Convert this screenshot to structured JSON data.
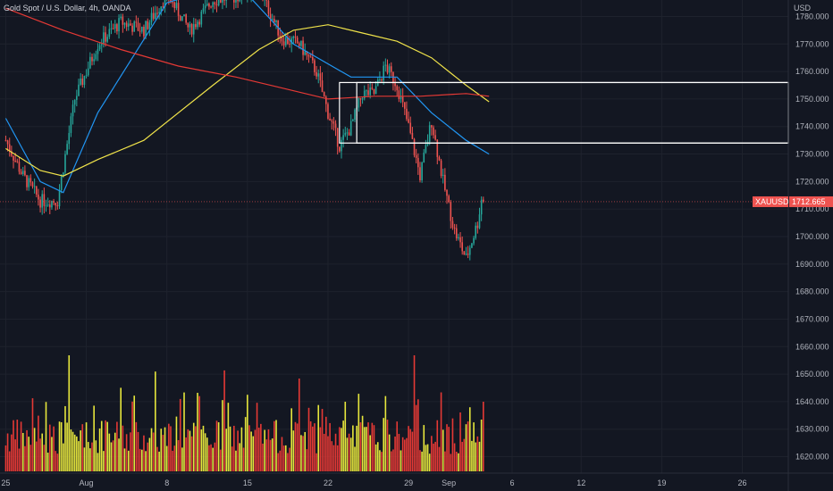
{
  "title": "Gold Spot / U.S. Dollar, 4h, OANDA",
  "currency": "USD",
  "price_tag": {
    "symbol": "XAUUSD",
    "value": "1712.665"
  },
  "colors": {
    "background": "#131722",
    "up": "#26a69a",
    "down": "#ef5350",
    "ma_fast": "#2196f3",
    "ma_mid": "#f0e34a",
    "ma_slow": "#e53935",
    "vol_up": "#e6e63c",
    "vol_down": "#e53935",
    "box": "#ffffff"
  },
  "chart_data": {
    "type": "candlestick",
    "y_axis": {
      "ticks": [
        "1780.000",
        "1770.000",
        "1760.000",
        "1750.000",
        "1740.000",
        "1730.000",
        "1720.000",
        "1710.000",
        "1700.000",
        "1690.000",
        "1680.000",
        "1670.000",
        "1660.000",
        "1650.000",
        "1640.000",
        "1630.000",
        "1620.000"
      ],
      "range": [
        1614,
        1786
      ]
    },
    "x_axis": {
      "ticks": [
        "25",
        "Aug",
        "8",
        "15",
        "22",
        "29",
        "Sep",
        "6",
        "12",
        "19",
        "26"
      ],
      "tick_days": [
        0,
        7,
        14,
        21,
        28,
        35,
        38.5,
        44,
        50,
        57,
        64
      ],
      "day_range": [
        -0.5,
        68
      ]
    },
    "price_path": [
      [
        0,
        1735
      ],
      [
        1.5,
        1722
      ],
      [
        3,
        1713
      ],
      [
        4.5,
        1713
      ],
      [
        6,
        1750
      ],
      [
        8,
        1770
      ],
      [
        10,
        1778
      ],
      [
        12,
        1775
      ],
      [
        14,
        1788
      ],
      [
        16,
        1775
      ],
      [
        18,
        1786
      ],
      [
        20,
        1787
      ],
      [
        22,
        1790
      ],
      [
        24,
        1772
      ],
      [
        25.5,
        1770
      ],
      [
        27,
        1760
      ],
      [
        28,
        1745
      ],
      [
        29,
        1733
      ],
      [
        30,
        1740
      ],
      [
        31,
        1752
      ],
      [
        32,
        1752
      ],
      [
        33,
        1762
      ],
      [
        34,
        1755
      ],
      [
        35,
        1740
      ],
      [
        36,
        1722
      ],
      [
        37,
        1742
      ],
      [
        38,
        1720
      ],
      [
        39,
        1702
      ],
      [
        40,
        1692
      ],
      [
        41,
        1705
      ],
      [
        41.5,
        1718
      ]
    ],
    "moving_averages": [
      {
        "key": "ma_fast",
        "points": [
          [
            0,
            1743
          ],
          [
            3,
            1720
          ],
          [
            5,
            1716
          ],
          [
            8,
            1745
          ],
          [
            11,
            1765
          ],
          [
            14,
            1785
          ],
          [
            18,
            1790
          ],
          [
            21,
            1788
          ],
          [
            25,
            1770
          ],
          [
            30,
            1758
          ],
          [
            34,
            1758
          ],
          [
            37,
            1745
          ],
          [
            40,
            1735
          ],
          [
            42,
            1730
          ]
        ]
      },
      {
        "key": "ma_mid",
        "points": [
          [
            0,
            1732
          ],
          [
            3,
            1724
          ],
          [
            5,
            1722
          ],
          [
            8,
            1728
          ],
          [
            12,
            1735
          ],
          [
            18,
            1755
          ],
          [
            22,
            1768
          ],
          [
            25,
            1775
          ],
          [
            28,
            1777
          ],
          [
            31,
            1774
          ],
          [
            34,
            1771
          ],
          [
            37,
            1765
          ],
          [
            40,
            1755
          ],
          [
            42,
            1749
          ]
        ]
      },
      {
        "key": "ma_slow",
        "points": [
          [
            0,
            1783
          ],
          [
            5,
            1775
          ],
          [
            10,
            1768
          ],
          [
            15,
            1762
          ],
          [
            20,
            1758
          ],
          [
            24,
            1754
          ],
          [
            28,
            1750
          ],
          [
            32,
            1751
          ],
          [
            36,
            1751
          ],
          [
            40,
            1752
          ],
          [
            42,
            1751
          ]
        ]
      }
    ],
    "boxes": [
      {
        "day_start": 29,
        "day_end": 68,
        "price_top": 1756,
        "price_bottom": 1734
      },
      {
        "day_start": 30.5,
        "day_end": 68,
        "price_top": 1756,
        "price_bottom": 1734
      }
    ],
    "current_price": 1712.665,
    "last_day": 41.5,
    "volume_spikes": [
      [
        5.5,
        0.9
      ],
      [
        10,
        0.72
      ],
      [
        13,
        0.86
      ],
      [
        15.5,
        0.68
      ],
      [
        19,
        0.62
      ],
      [
        21,
        0.66
      ],
      [
        25.5,
        0.55
      ],
      [
        29.5,
        0.6
      ],
      [
        35.5,
        1.0
      ],
      [
        41.5,
        0.6
      ]
    ]
  }
}
